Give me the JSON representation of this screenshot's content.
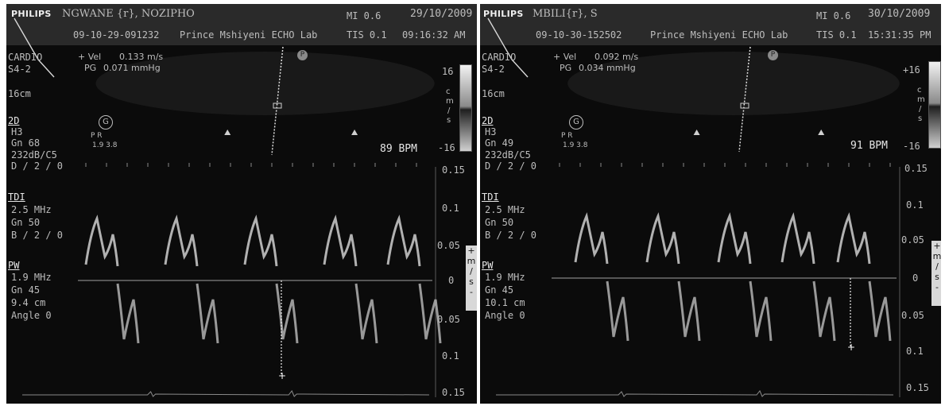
{
  "left": {
    "logo": "PHILIPS",
    "patient": "NGWANE {r}, NOZIPHO",
    "study_id": "09-10-29-091232",
    "lab": "Prince Mshiyeni ECHO Lab",
    "mi": "MI 0.6",
    "tis": "TIS 0.1",
    "date": "29/10/2009",
    "time": "09:16:32 AM",
    "mode_cardio": "CARDIO",
    "probe": "S4-2",
    "depth": "16cm",
    "vel_label": "+ Vel",
    "vel_value": "0.133 m/s",
    "pg_label": "PG",
    "pg_value": "0.071 mmHg",
    "twod_head": "2D",
    "twod": [
      "H3",
      "Gn 68",
      "232dB/C5",
      "D / 2 / 0"
    ],
    "tdi_head": "TDI",
    "tdi": [
      "2.5 MHz",
      "Gn 50",
      "B / 2 / 0"
    ],
    "pw_head": "PW",
    "pw": [
      "1.9 MHz",
      "Gn 45",
      "9.4 cm",
      "Angle 0"
    ],
    "bpm": "89 BPM",
    "orient_circle": "G",
    "orient_pr": "P    R",
    "orient_vals": "1.9  3.8",
    "marker": "P",
    "colorbar_top": "16",
    "colorbar_bottom": "-16",
    "colorbar_units": [
      "c",
      "m",
      "/",
      "s"
    ],
    "scale_labels": [
      "0.15",
      "0.1",
      "0.05",
      "0",
      "0.05",
      "0.1",
      "0.15"
    ],
    "units_box": [
      "+",
      "m",
      "/",
      "s",
      "-"
    ]
  },
  "right": {
    "logo": "PHILIPS",
    "patient": "MBILI{r}, S",
    "study_id": "09-10-30-152502",
    "lab": "Prince Mshiyeni ECHO Lab",
    "mi": "MI 0.6",
    "tis": "TIS 0.1",
    "date": "30/10/2009",
    "time": "15:31:35 PM",
    "mode_cardio": "CARDIO",
    "probe": "S4-2",
    "depth": "16cm",
    "vel_label": "+ Vel",
    "vel_value": "0.092 m/s",
    "pg_label": "PG",
    "pg_value": "0.034 mmHg",
    "twod_head": "2D",
    "twod": [
      "H3",
      "Gn 49",
      "232dB/C5",
      "D / 2 / 0"
    ],
    "tdi_head": "TDI",
    "tdi": [
      "2.5 MHz",
      "Gn 50",
      "B / 2 / 0"
    ],
    "pw_head": "PW",
    "pw": [
      "1.9 MHz",
      "Gn 45",
      "10.1 cm",
      "Angle 0"
    ],
    "bpm": "91 BPM",
    "orient_circle": "G",
    "orient_pr": "P    R",
    "orient_vals": "1.9  3.8",
    "marker": "P",
    "colorbar_top": "+16",
    "colorbar_bottom": "-16",
    "colorbar_units": [
      "c",
      "m",
      "/",
      "s"
    ],
    "scale_labels": [
      "0.15",
      "0.1",
      "0.05",
      "0",
      "0.05",
      "0.1",
      "0.15"
    ],
    "units_box": [
      "+",
      "m",
      "/",
      "s",
      "-"
    ]
  }
}
